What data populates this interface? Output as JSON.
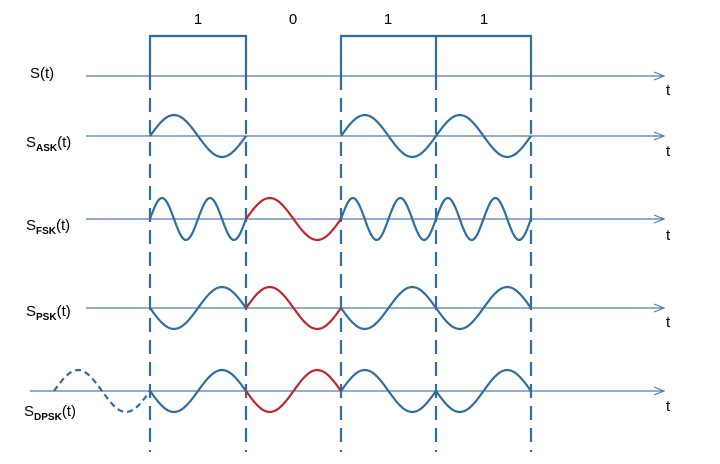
{
  "bits": [
    "1",
    "0",
    "1",
    "1"
  ],
  "axis_end_label": "t",
  "signals": [
    {
      "id": "s",
      "main": "S",
      "sub": "",
      "arg": "(t)"
    },
    {
      "id": "ask",
      "main": "S",
      "sub": "ASK",
      "arg": "(t)"
    },
    {
      "id": "fsk",
      "main": "S",
      "sub": "FSK",
      "arg": "(t)"
    },
    {
      "id": "psk",
      "main": "S",
      "sub": "PSK",
      "arg": "(t)"
    },
    {
      "id": "dpsk",
      "main": "S",
      "sub": "DPSK",
      "arg": "(t)"
    }
  ],
  "colors": {
    "wave": "#2e6ea0",
    "highlight": "#c0272d",
    "axis": "#4f7fae"
  }
}
